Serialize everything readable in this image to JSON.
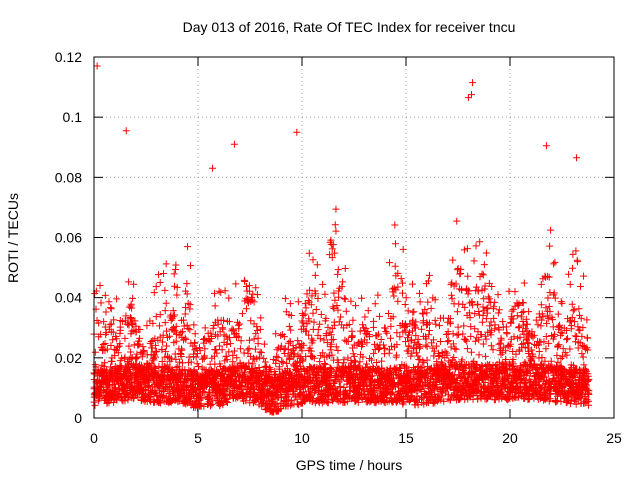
{
  "chart_data": {
    "type": "scatter",
    "title": "Day 013 of 2016, Rate Of TEC Index for receiver tncu",
    "xlabel": "GPS time / hours",
    "ylabel": "ROTI / TECUs",
    "xlim": [
      0,
      25
    ],
    "ylim": [
      0,
      0.12
    ],
    "x_ticks": [
      0,
      5,
      10,
      15,
      20,
      25
    ],
    "x_tick_labels": [
      "0",
      "5",
      "10",
      "15",
      "20",
      "25"
    ],
    "y_ticks": [
      0,
      0.02,
      0.04,
      0.06,
      0.08,
      0.1,
      0.12
    ],
    "y_tick_labels": [
      "0",
      "0.02",
      "0.04",
      "0.06",
      "0.08",
      "0.1",
      "0.12"
    ],
    "grid": true,
    "marker": "+",
    "series": [
      {
        "name": "ROTI",
        "color": "#ff0000",
        "notable_points": [
          {
            "x": 0.15,
            "y": 0.117
          },
          {
            "x": 1.55,
            "y": 0.0955
          },
          {
            "x": 5.7,
            "y": 0.083
          },
          {
            "x": 6.75,
            "y": 0.091
          },
          {
            "x": 9.75,
            "y": 0.095
          },
          {
            "x": 18.0,
            "y": 0.1065
          },
          {
            "x": 18.15,
            "y": 0.1075
          },
          {
            "x": 18.2,
            "y": 0.1115
          },
          {
            "x": 21.75,
            "y": 0.0905
          },
          {
            "x": 23.2,
            "y": 0.0865
          }
        ],
        "activity_profile": [
          {
            "x": 0.0,
            "baseline": 0.01,
            "peak": 0.078
          },
          {
            "x": 1.0,
            "baseline": 0.011,
            "peak": 0.058
          },
          {
            "x": 2.0,
            "baseline": 0.012,
            "peak": 0.06
          },
          {
            "x": 3.0,
            "baseline": 0.011,
            "peak": 0.066
          },
          {
            "x": 4.0,
            "baseline": 0.011,
            "peak": 0.072
          },
          {
            "x": 5.0,
            "baseline": 0.009,
            "peak": 0.045
          },
          {
            "x": 5.5,
            "baseline": 0.01,
            "peak": 0.074
          },
          {
            "x": 6.0,
            "baseline": 0.01,
            "peak": 0.06
          },
          {
            "x": 7.0,
            "baseline": 0.012,
            "peak": 0.085
          },
          {
            "x": 8.0,
            "baseline": 0.01,
            "peak": 0.042
          },
          {
            "x": 8.6,
            "baseline": 0.007,
            "peak": 0.026
          },
          {
            "x": 9.5,
            "baseline": 0.01,
            "peak": 0.079
          },
          {
            "x": 10.5,
            "baseline": 0.011,
            "peak": 0.072
          },
          {
            "x": 11.5,
            "baseline": 0.011,
            "peak": 0.074
          },
          {
            "x": 12.5,
            "baseline": 0.011,
            "peak": 0.068
          },
          {
            "x": 13.5,
            "baseline": 0.011,
            "peak": 0.064
          },
          {
            "x": 14.5,
            "baseline": 0.011,
            "peak": 0.07
          },
          {
            "x": 15.5,
            "baseline": 0.01,
            "peak": 0.062
          },
          {
            "x": 16.5,
            "baseline": 0.011,
            "peak": 0.065
          },
          {
            "x": 17.5,
            "baseline": 0.012,
            "peak": 0.08
          },
          {
            "x": 18.5,
            "baseline": 0.012,
            "peak": 0.078
          },
          {
            "x": 19.5,
            "baseline": 0.012,
            "peak": 0.07
          },
          {
            "x": 20.5,
            "baseline": 0.012,
            "peak": 0.077
          },
          {
            "x": 21.5,
            "baseline": 0.012,
            "peak": 0.07
          },
          {
            "x": 22.5,
            "baseline": 0.011,
            "peak": 0.065
          },
          {
            "x": 23.8,
            "baseline": 0.01,
            "peak": 0.082
          }
        ]
      }
    ]
  }
}
